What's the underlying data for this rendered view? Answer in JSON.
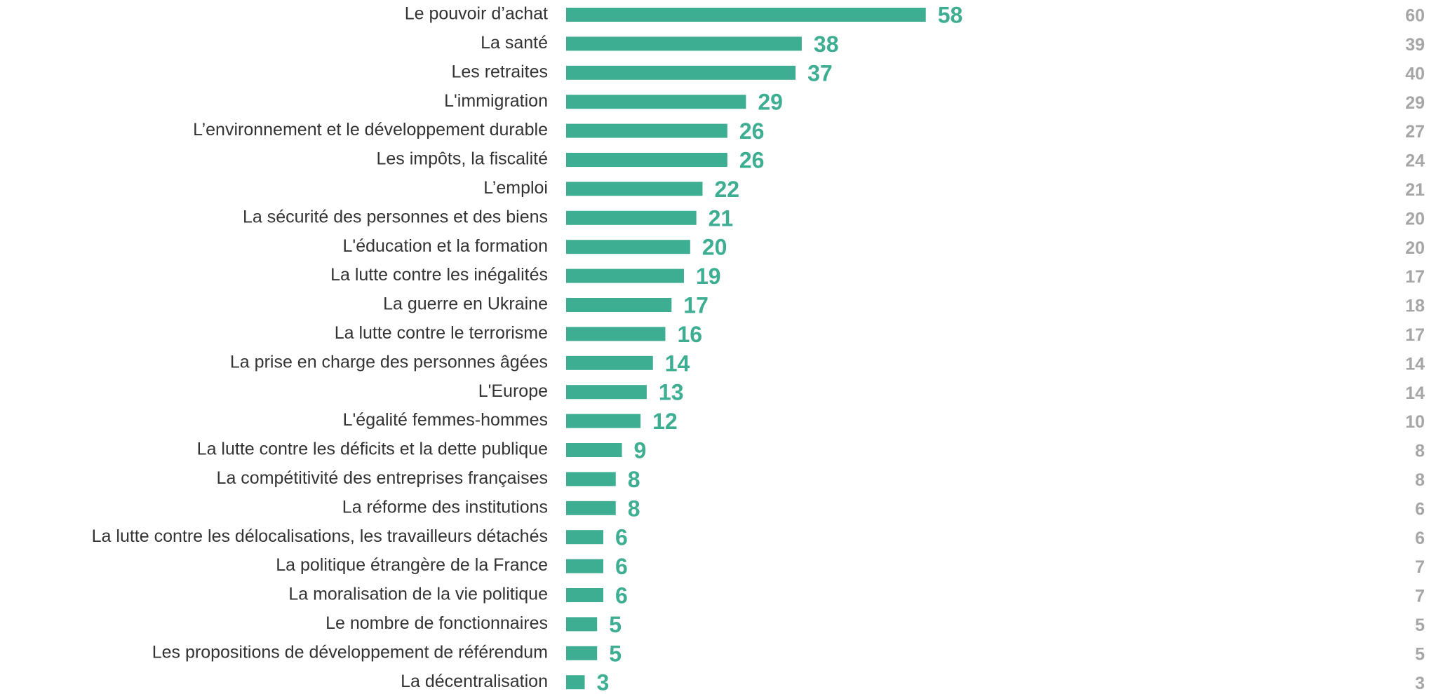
{
  "chart_data": {
    "type": "bar",
    "orientation": "horizontal",
    "color": "#3dae92",
    "comparison_color": "#a6a6a6",
    "categories": [
      "Le pouvoir d’achat",
      "La santé",
      "Les retraites",
      "L'immigration",
      "L’environnement et le développement durable",
      "Les impôts, la fiscalité",
      "L’emploi",
      "La sécurité des personnes et des biens",
      "L'éducation et la formation",
      "La lutte contre les inégalités",
      "La guerre en Ukraine",
      "La lutte contre le terrorisme",
      "La prise en charge des personnes âgées",
      "L'Europe",
      "L'égalité femmes-hommes",
      "La lutte contre les déficits et la dette publique",
      "La compétitivité des entreprises françaises",
      "La réforme des institutions",
      "La lutte contre les délocalisations, les travailleurs détachés",
      "La politique étrangère de la France",
      "La moralisation de la vie politique",
      "Le nombre de fonctionnaires",
      "Les propositions de développement de référendum",
      "La décentralisation"
    ],
    "values": [
      58,
      38,
      37,
      29,
      26,
      26,
      22,
      21,
      20,
      19,
      17,
      16,
      14,
      13,
      12,
      9,
      8,
      8,
      6,
      6,
      6,
      5,
      5,
      3
    ],
    "comparison_values": [
      60,
      39,
      40,
      29,
      27,
      24,
      21,
      20,
      20,
      17,
      18,
      17,
      14,
      14,
      10,
      8,
      8,
      6,
      6,
      7,
      7,
      5,
      5,
      3
    ]
  }
}
